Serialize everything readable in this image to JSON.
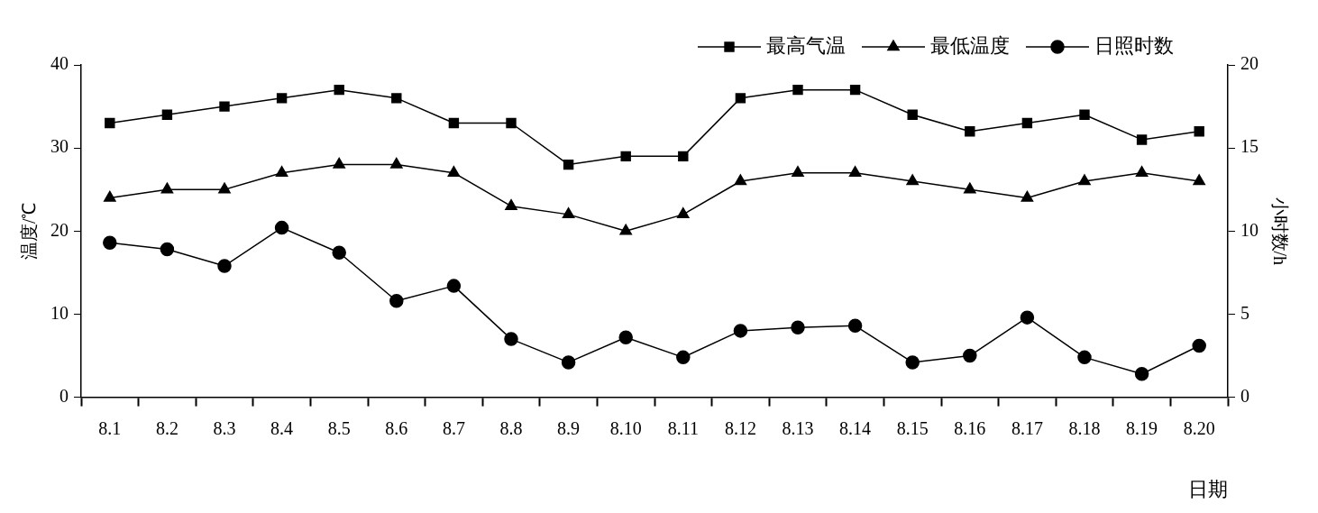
{
  "chart_data": {
    "type": "line",
    "xlabel": "日期",
    "ylabel": "温度/℃",
    "y2label": "小时数/h",
    "categories": [
      "8.1",
      "8.2",
      "8.3",
      "8.4",
      "8.5",
      "8.6",
      "8.7",
      "8.8",
      "8.9",
      "8.10",
      "8.11",
      "8.12",
      "8.13",
      "8.14",
      "8.15",
      "8.16",
      "8.17",
      "8.18",
      "8.19",
      "8.20"
    ],
    "series": [
      {
        "name": "最高气温",
        "color": "#000000",
        "marker": "square",
        "values": [
          33,
          34,
          35,
          36,
          37,
          36,
          33,
          33,
          28,
          29,
          29,
          36,
          37,
          37,
          34,
          32,
          33,
          34,
          31,
          32
        ]
      },
      {
        "name": "最低温度",
        "color": "#000000",
        "marker": "triangle",
        "values": [
          24,
          25,
          25,
          27,
          28,
          28,
          27,
          23,
          22,
          20,
          22,
          26,
          27,
          27,
          26,
          25,
          24,
          26,
          27,
          26
        ]
      },
      {
        "name": "日照时数",
        "color": "#000000",
        "marker": "circle",
        "axis": "y2",
        "values": [
          9.3,
          8.9,
          7.9,
          10.2,
          8.7,
          5.8,
          6.7,
          3.5,
          2.1,
          3.6,
          2.4,
          4.0,
          4.2,
          4.3,
          2.1,
          2.5,
          4.8,
          2.4,
          1.4,
          3.1
        ]
      }
    ],
    "ylim": [
      0,
      40
    ],
    "yticks": [
      0,
      10,
      20,
      30,
      40
    ],
    "y2lim": [
      0,
      20
    ],
    "y2ticks": [
      0,
      5,
      10,
      15,
      20
    ],
    "grid": false,
    "legend": "top right",
    "line_style": "solid"
  }
}
